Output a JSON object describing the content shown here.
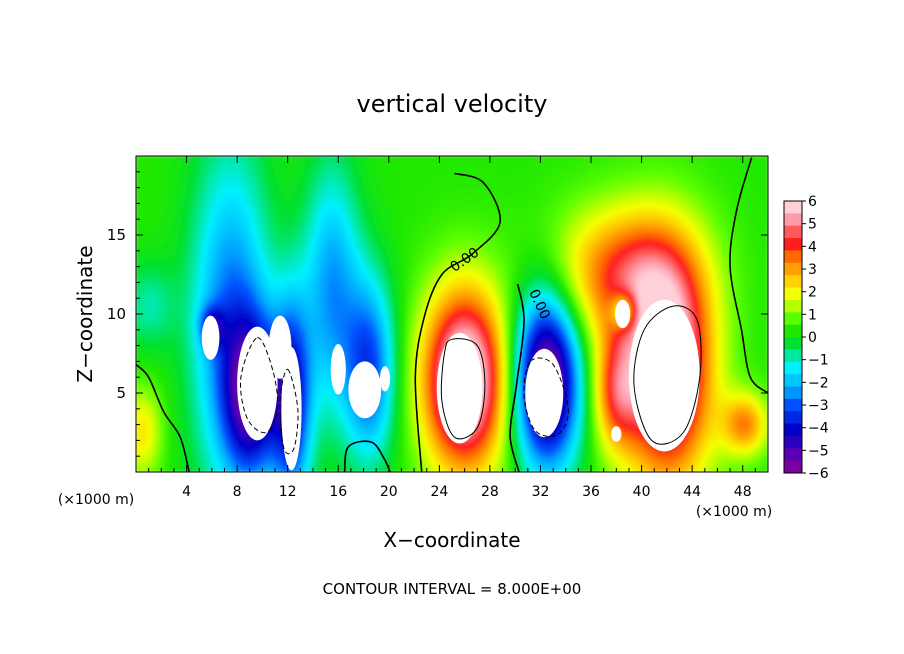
{
  "chart_data": {
    "type": "heatmap",
    "title": "vertical velocity",
    "xlabel": "X−coordinate",
    "ylabel": "Z−coordinate",
    "x_unit_label": "(×1000 m)",
    "footer": "CONTOUR INTERVAL = 8.000E+00",
    "xlim": [
      0,
      50
    ],
    "ylim": [
      0,
      20
    ],
    "x_ticks": [
      4,
      8,
      12,
      16,
      20,
      24,
      28,
      32,
      36,
      40,
      44,
      48
    ],
    "x_tick_labels": [
      "4",
      "8",
      "12",
      "16",
      "20",
      "24",
      "28",
      "32",
      "36",
      "40",
      "44",
      "48"
    ],
    "y_ticks": [
      5,
      10,
      15
    ],
    "y_tick_labels": [
      "5",
      "10",
      "15"
    ],
    "contour_labels": [
      {
        "text": "0.00",
        "x": 26.2,
        "y": 13.2,
        "rotate": -35
      },
      {
        "text": "0.00",
        "x": 31.6,
        "y": 10.5,
        "rotate": 65
      }
    ],
    "colorbar": {
      "range": [
        -6,
        6
      ],
      "labels": [
        "6",
        "5",
        "4",
        "3",
        "2",
        "1",
        "0",
        "−1",
        "−2",
        "−3",
        "−4",
        "−5",
        "−6"
      ],
      "colors": [
        "#ffd0d8",
        "#ff9aa8",
        "#ff5a5a",
        "#ff1e1e",
        "#ff6a00",
        "#ffa000",
        "#ffd200",
        "#f5ff00",
        "#b4ff00",
        "#5cff00",
        "#20e800",
        "#00e030",
        "#00e8a0",
        "#00f0ff",
        "#00c8ff",
        "#0096ff",
        "#0050ff",
        "#0028e0",
        "#0000c8",
        "#2800c0",
        "#5a00b0",
        "#7a00a0"
      ]
    },
    "background_value": 0.3,
    "cells": [
      {
        "x": 7.5,
        "y": 9.5,
        "sx": 2.2,
        "sy": 7.5,
        "a": -3.2
      },
      {
        "x": 9.2,
        "y": 4.8,
        "sx": 1.5,
        "sy": 3.5,
        "a": -4.8
      },
      {
        "x": 12.3,
        "y": 4.5,
        "sx": 1.1,
        "sy": 4.5,
        "a": -4.5
      },
      {
        "x": 15.5,
        "y": 11.5,
        "sx": 1.6,
        "sy": 5.5,
        "a": -2.8
      },
      {
        "x": 18.5,
        "y": 6.5,
        "sx": 1.4,
        "sy": 4.0,
        "a": -3.6
      },
      {
        "x": 6.0,
        "y": 9.2,
        "sx": 0.7,
        "sy": 0.9,
        "a": -2.5
      },
      {
        "x": 1.0,
        "y": 10.5,
        "sx": 1.5,
        "sy": 2.0,
        "a": -1.2
      },
      {
        "x": 26.0,
        "y": 5.8,
        "sx": 2.3,
        "sy": 4.0,
        "a": 7.0
      },
      {
        "x": 32.5,
        "y": 5.8,
        "sx": 1.8,
        "sy": 3.8,
        "a": -7.0
      },
      {
        "x": 38.5,
        "y": 12.5,
        "sx": 3.8,
        "sy": 3.0,
        "a": 3.5
      },
      {
        "x": 42.0,
        "y": 6.5,
        "sx": 2.5,
        "sy": 5.0,
        "a": 6.5
      },
      {
        "x": 38.0,
        "y": 5.0,
        "sx": 1.3,
        "sy": 2.5,
        "a": 3.0
      },
      {
        "x": 48.2,
        "y": 3.0,
        "sx": 1.3,
        "sy": 1.4,
        "a": 3.0
      },
      {
        "x": 0.5,
        "y": 2.5,
        "sx": 1.1,
        "sy": 2.0,
        "a": 2.0
      },
      {
        "x": 38.6,
        "y": 10.2,
        "sx": 0.7,
        "sy": 0.8,
        "a": -3.0
      }
    ],
    "zero_contours": [
      [
        [
          25.2,
          18.9
        ],
        [
          27.5,
          18.3
        ],
        [
          28.8,
          15.8
        ],
        [
          26.6,
          13.8
        ],
        [
          24.2,
          12.5
        ],
        [
          22.8,
          9.8
        ],
        [
          22.1,
          6.0
        ],
        [
          22.6,
          0.0
        ]
      ],
      [
        [
          30.2,
          11.9
        ],
        [
          30.7,
          9.5
        ],
        [
          30.1,
          5.5
        ],
        [
          29.6,
          2.3
        ],
        [
          30.3,
          0.0
        ]
      ],
      [
        [
          48.7,
          19.9
        ],
        [
          47.5,
          16.5
        ],
        [
          47.0,
          13.0
        ],
        [
          47.9,
          9.0
        ],
        [
          48.6,
          6.0
        ],
        [
          50.0,
          5.0
        ]
      ],
      [
        [
          0.0,
          6.8
        ],
        [
          1.0,
          6.0
        ],
        [
          2.2,
          3.8
        ],
        [
          3.5,
          2.2
        ],
        [
          4.2,
          0.0
        ]
      ],
      [
        [
          16.5,
          0.0
        ],
        [
          16.8,
          1.6
        ],
        [
          18.6,
          1.9
        ],
        [
          19.6,
          0.9
        ],
        [
          20.1,
          0.0
        ]
      ]
    ],
    "inner_contours": [
      {
        "points": [
          [
            25.0,
            8.4
          ],
          [
            27.0,
            8.0
          ],
          [
            27.6,
            5.5
          ],
          [
            27.0,
            2.8
          ],
          [
            25.2,
            2.2
          ],
          [
            24.2,
            4.5
          ],
          [
            24.4,
            7.5
          ]
        ],
        "dash": false
      },
      {
        "points": [
          [
            31.2,
            7.0
          ],
          [
            33.0,
            6.8
          ],
          [
            34.2,
            4.0
          ],
          [
            33.4,
            2.4
          ],
          [
            31.6,
            2.6
          ],
          [
            30.7,
            4.8
          ]
        ],
        "dash": true
      },
      {
        "points": [
          [
            42.5,
            10.5
          ],
          [
            44.4,
            9.6
          ],
          [
            44.6,
            6.0
          ],
          [
            43.3,
            2.5
          ],
          [
            40.8,
            2.0
          ],
          [
            39.4,
            5.5
          ],
          [
            40.2,
            9.0
          ]
        ],
        "dash": false
      },
      {
        "points": [
          [
            9.6,
            8.5
          ],
          [
            10.8,
            6.5
          ],
          [
            11.2,
            4.0
          ],
          [
            10.3,
            2.5
          ],
          [
            8.8,
            3.4
          ],
          [
            8.3,
            6.0
          ]
        ],
        "dash": true
      },
      {
        "points": [
          [
            12.0,
            6.5
          ],
          [
            12.8,
            4.0
          ],
          [
            12.5,
            1.5
          ],
          [
            11.7,
            1.5
          ],
          [
            11.4,
            4.5
          ]
        ],
        "dash": true
      }
    ],
    "white_regions": [
      {
        "x": 5.9,
        "y": 8.5,
        "rx": 0.7,
        "ry": 1.4
      },
      {
        "x": 9.6,
        "y": 5.6,
        "rx": 1.6,
        "ry": 3.6
      },
      {
        "x": 11.4,
        "y": 7.9,
        "rx": 0.9,
        "ry": 2.0
      },
      {
        "x": 12.3,
        "y": 4.0,
        "rx": 0.8,
        "ry": 3.9
      },
      {
        "x": 16.0,
        "y": 6.5,
        "rx": 0.6,
        "ry": 1.6
      },
      {
        "x": 18.1,
        "y": 5.2,
        "rx": 1.3,
        "ry": 1.8
      },
      {
        "x": 19.7,
        "y": 5.9,
        "rx": 0.4,
        "ry": 0.8
      },
      {
        "x": 25.6,
        "y": 5.3,
        "rx": 1.8,
        "ry": 3.5
      },
      {
        "x": 32.3,
        "y": 5.0,
        "rx": 1.5,
        "ry": 2.8
      },
      {
        "x": 41.8,
        "y": 6.1,
        "rx": 2.8,
        "ry": 4.8
      },
      {
        "x": 38.5,
        "y": 10.0,
        "rx": 0.6,
        "ry": 0.9
      },
      {
        "x": 38.0,
        "y": 2.4,
        "rx": 0.4,
        "ry": 0.5
      }
    ]
  }
}
